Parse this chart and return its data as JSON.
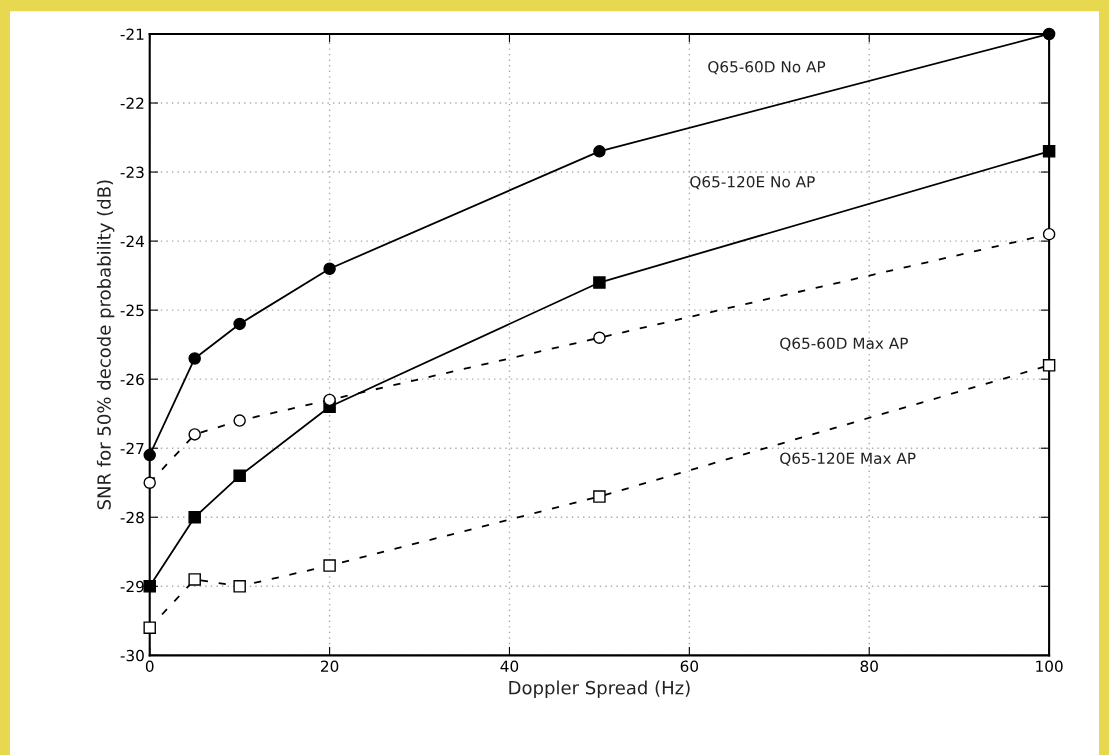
{
  "chart_data": {
    "type": "line",
    "xlabel": "Doppler Spread (Hz)",
    "ylabel": "SNR for 50% decode probability (dB)",
    "x": [
      0,
      5,
      10,
      20,
      50,
      100
    ],
    "series": [
      {
        "name": "Q65-60D No AP",
        "color": "#000000",
        "marker": "circle",
        "line_style": "solid",
        "values": [
          -27.1,
          -25.7,
          -25.2,
          -24.4,
          -22.7,
          -21.0
        ]
      },
      {
        "name": "Q65-120E No AP",
        "color": "#000000",
        "marker": "square",
        "line_style": "solid",
        "values": [
          -29.0,
          -28.0,
          -27.4,
          -26.4,
          -24.6,
          -22.7
        ]
      },
      {
        "name": "Q65-60D Max AP",
        "color": "#000000",
        "marker": "circle",
        "line_style": "dashed",
        "values": [
          -27.5,
          -26.8,
          -26.6,
          -26.3,
          -25.4,
          -23.9
        ]
      },
      {
        "name": "Q65-120E Max AP",
        "color": "#000000",
        "marker": "square",
        "line_style": "dashed",
        "values": [
          -29.6,
          -28.9,
          -29.0,
          -28.7,
          -27.7,
          -25.8
        ]
      }
    ],
    "xlim": [
      0,
      100
    ],
    "xticks": [
      0,
      20,
      40,
      60,
      80,
      100
    ],
    "ylim": [
      -30,
      -21
    ],
    "yticks": [
      -30,
      -29,
      -28,
      -27,
      -26,
      -25,
      -24,
      -23,
      -22,
      -21
    ],
    "grid": true,
    "legend": false
  }
}
